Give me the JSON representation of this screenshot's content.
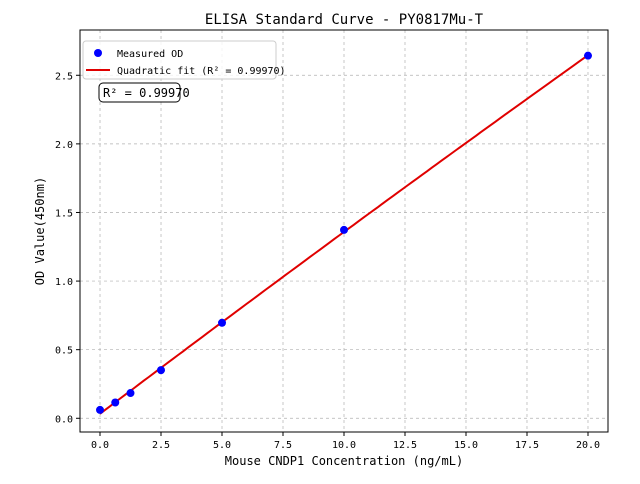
{
  "chart_data": {
    "type": "scatter",
    "title": "ELISA Standard Curve - PY0817Mu-T",
    "xlabel": "Mouse CNDP1 Concentration (ng/mL)",
    "ylabel": "OD Value(450nm)",
    "xlim": [
      -0.82,
      20.82
    ],
    "ylim": [
      -0.1,
      2.83
    ],
    "xticks": [
      "0.0",
      "2.5",
      "5.0",
      "7.5",
      "10.0",
      "12.5",
      "15.0",
      "17.5",
      "20.0"
    ],
    "xtick_values": [
      0,
      2.5,
      5,
      7.5,
      10,
      12.5,
      15,
      17.5,
      20
    ],
    "yticks": [
      "0.0",
      "0.5",
      "1.0",
      "1.5",
      "2.0",
      "2.5"
    ],
    "ytick_values": [
      0,
      0.5,
      1,
      1.5,
      2,
      2.5
    ],
    "grid": true,
    "legend_position": "top-left",
    "series": [
      {
        "name": "Measured OD",
        "kind": "points",
        "color": "#0000ff",
        "x": [
          0,
          0.625,
          1.25,
          2.5,
          5,
          10,
          20
        ],
        "y": [
          0.061,
          0.115,
          0.184,
          0.351,
          0.696,
          1.373,
          2.643
        ]
      },
      {
        "name": "Quadratic fit (R² = 0.99970)",
        "kind": "quadratic-fit",
        "color": "#e00000"
      }
    ],
    "annotation": "R² = 0.99970"
  }
}
